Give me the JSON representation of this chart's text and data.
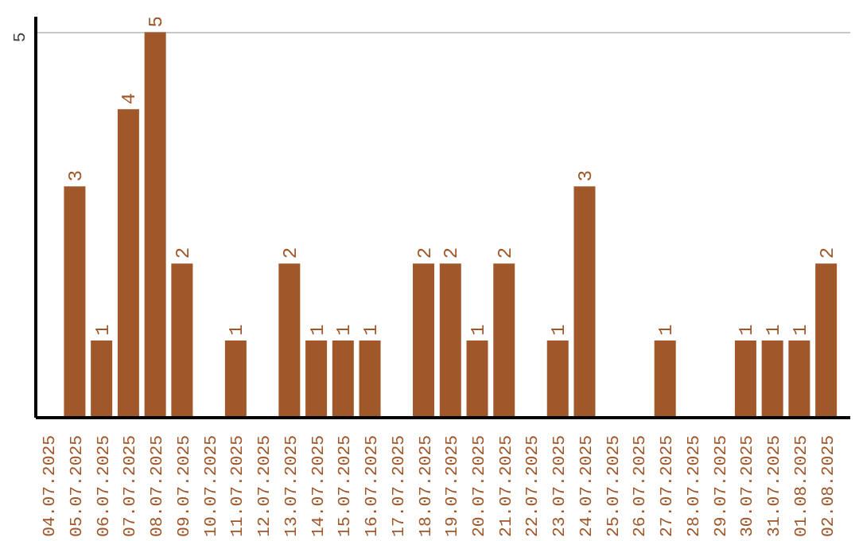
{
  "chart_data": {
    "type": "bar",
    "categories": [
      "04.07.2025",
      "05.07.2025",
      "06.07.2025",
      "07.07.2025",
      "08.07.2025",
      "09.07.2025",
      "10.07.2025",
      "11.07.2025",
      "12.07.2025",
      "13.07.2025",
      "14.07.2025",
      "15.07.2025",
      "16.07.2025",
      "17.07.2025",
      "18.07.2025",
      "19.07.2025",
      "20.07.2025",
      "21.07.2025",
      "22.07.2025",
      "23.07.2025",
      "24.07.2025",
      "25.07.2025",
      "26.07.2025",
      "27.07.2025",
      "28.07.2025",
      "29.07.2025",
      "30.07.2025",
      "31.07.2025",
      "01.08.2025",
      "02.08.2025"
    ],
    "values": [
      0,
      3,
      1,
      4,
      5,
      2,
      0,
      1,
      0,
      2,
      1,
      1,
      1,
      0,
      2,
      2,
      1,
      2,
      0,
      1,
      3,
      0,
      0,
      1,
      0,
      0,
      1,
      1,
      1,
      2
    ],
    "value_labels": [
      null,
      "3",
      "1",
      "4",
      "5",
      "2",
      null,
      "1",
      null,
      "2",
      "1",
      "1",
      "1",
      null,
      "2",
      "2",
      "1",
      "2",
      null,
      "1",
      "3",
      null,
      null,
      "1",
      null,
      null,
      "1",
      "1",
      "1",
      "2"
    ],
    "color": "#a0572a",
    "ylim": [
      0,
      5.2
    ],
    "yticks": [
      5
    ],
    "grid": "y"
  }
}
